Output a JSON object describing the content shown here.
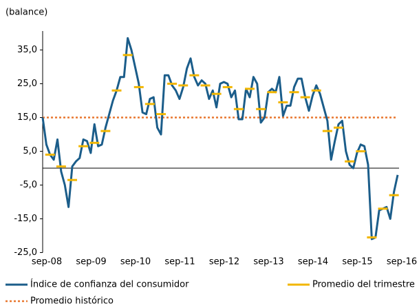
{
  "chart_data": {
    "type": "line",
    "y_label": "(balance)",
    "categories": [
      "sep-08",
      null,
      null,
      null,
      null,
      null,
      null,
      null,
      null,
      null,
      null,
      null,
      "sep-09",
      null,
      null,
      null,
      null,
      null,
      null,
      null,
      null,
      null,
      null,
      null,
      "sep-10",
      null,
      null,
      null,
      null,
      null,
      null,
      null,
      null,
      null,
      null,
      null,
      "sep-11",
      null,
      null,
      null,
      null,
      null,
      null,
      null,
      null,
      null,
      null,
      null,
      "sep-12",
      null,
      null,
      null,
      null,
      null,
      null,
      null,
      null,
      null,
      null,
      null,
      "sep-13",
      null,
      null,
      null,
      null,
      null,
      null,
      null,
      null,
      null,
      null,
      null,
      "sep-14",
      null,
      null,
      null,
      null,
      null,
      null,
      null,
      null,
      null,
      null,
      null,
      "sep-15",
      null,
      null,
      null,
      null,
      null,
      null,
      null,
      null,
      null,
      null,
      null,
      "sep-16"
    ],
    "series": [
      {
        "name": "Índice de confianza del consumidor",
        "color": "#1b5d8a",
        "style": "line",
        "values": [
          15,
          7,
          4,
          2.5,
          8.5,
          -1,
          -5,
          -11.5,
          0.5,
          2,
          3,
          8.5,
          8,
          4.5,
          13,
          6.5,
          7,
          12,
          16,
          20,
          23,
          27,
          27,
          38.5,
          35,
          30,
          25,
          16.5,
          16,
          20.5,
          21,
          12,
          10,
          27.5,
          27.5,
          24.5,
          23,
          20.5,
          24,
          29.5,
          32.5,
          27,
          24.5,
          26,
          25,
          20.5,
          23,
          18,
          25,
          25.5,
          25,
          21,
          23,
          14.5,
          14.5,
          23.5,
          21,
          27,
          25,
          13.5,
          15,
          22.5,
          23.5,
          22.5,
          27,
          15.5,
          18.5,
          18.5,
          24,
          26.5,
          26.5,
          21,
          17,
          21.5,
          24.5,
          22,
          18,
          14,
          2.5,
          8,
          13,
          14,
          5,
          1,
          0,
          4.5,
          7,
          6.5,
          1,
          -21,
          -20.5,
          -12.5,
          -12,
          -11.5,
          -15,
          -7,
          -2
        ]
      },
      {
        "name": "Promedio del trimestre",
        "color": "#f2b600",
        "style": "dash",
        "values": [
          null,
          null,
          4,
          null,
          null,
          0.5,
          null,
          null,
          -3.5,
          null,
          null,
          6.5,
          null,
          null,
          7.5,
          null,
          null,
          11,
          null,
          null,
          23,
          null,
          null,
          33.5,
          null,
          null,
          24,
          null,
          null,
          19,
          null,
          null,
          16,
          null,
          null,
          25,
          null,
          null,
          24.5,
          null,
          null,
          27.5,
          null,
          null,
          24.5,
          null,
          null,
          22,
          null,
          null,
          24,
          null,
          null,
          17.5,
          null,
          null,
          23.5,
          null,
          null,
          17.5,
          null,
          null,
          22.5,
          null,
          null,
          19.5,
          null,
          null,
          22.5,
          null,
          null,
          21,
          null,
          null,
          23,
          null,
          null,
          11,
          null,
          null,
          12,
          null,
          null,
          2,
          null,
          null,
          5,
          null,
          null,
          -20.5,
          null,
          null,
          -12,
          null,
          null,
          -8,
          null
        ]
      }
    ],
    "reference": {
      "name": "Promedio histórico",
      "value": 15,
      "color": "#e8772e"
    },
    "ylim": [
      -25,
      40
    ],
    "yticks": [
      {
        "value": -25,
        "label": "-25,0"
      },
      {
        "value": -15,
        "label": "-15,0"
      },
      {
        "value": -5,
        "label": "-5,0"
      },
      {
        "value": 5,
        "label": "5,0"
      },
      {
        "value": 15,
        "label": "15,0"
      },
      {
        "value": 25,
        "label": "25,0"
      },
      {
        "value": 35,
        "label": "35,0"
      }
    ],
    "grid": false
  }
}
